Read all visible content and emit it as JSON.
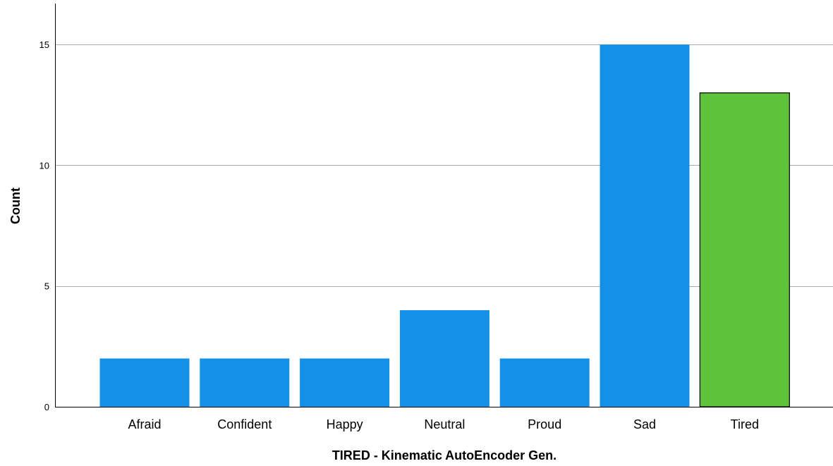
{
  "chart_data": {
    "type": "bar",
    "title": "",
    "xlabel": "TIRED - Kinematic AutoEncoder Gen.",
    "ylabel": "Count",
    "categories": [
      "Afraid",
      "Confident",
      "Happy",
      "Neutral",
      "Proud",
      "Sad",
      "Tired"
    ],
    "values": [
      2,
      2,
      2,
      4,
      2,
      15,
      13
    ],
    "highlight_category": "Tired",
    "colors": {
      "bar": "#1490E6",
      "highlight": "#5EC33A",
      "highlight_outline": "#000000",
      "grid": "#AAAAAA",
      "axis": "#000000"
    },
    "ylim": [
      0,
      16.7
    ],
    "yticks": [
      0,
      5,
      10,
      15
    ],
    "grid": true,
    "legend": "none"
  }
}
